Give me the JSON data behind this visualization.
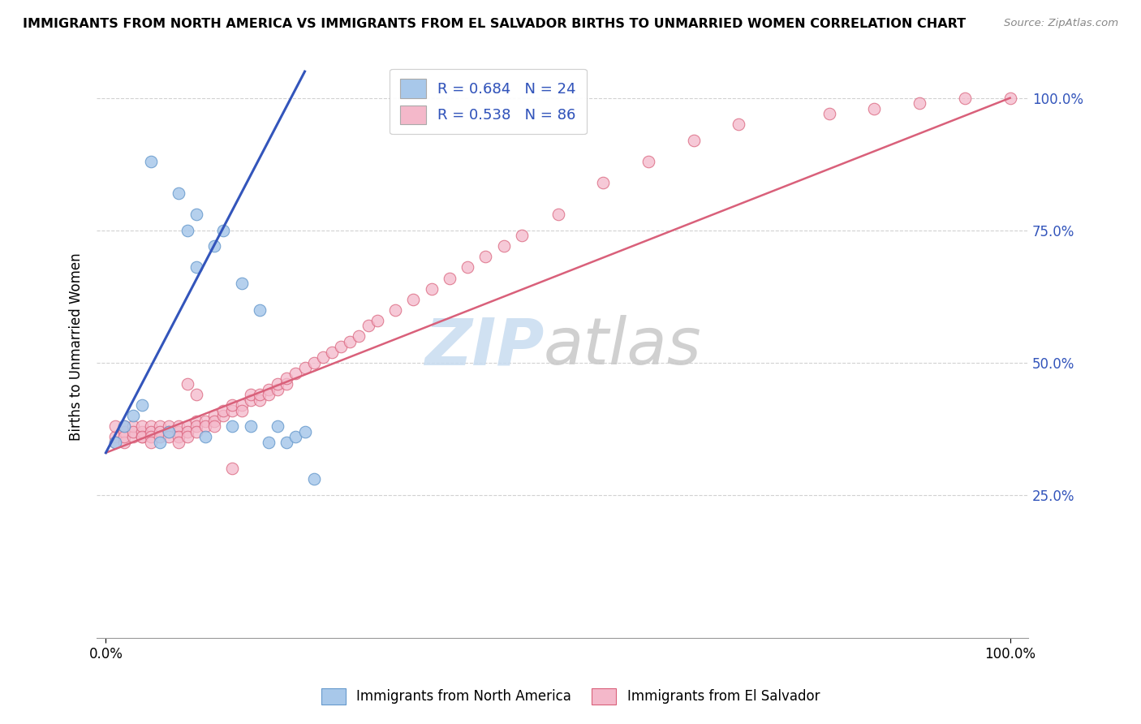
{
  "title": "IMMIGRANTS FROM NORTH AMERICA VS IMMIGRANTS FROM EL SALVADOR BIRTHS TO UNMARRIED WOMEN CORRELATION CHART",
  "source": "Source: ZipAtlas.com",
  "ylabel": "Births to Unmarried Women",
  "legend1_label": "R = 0.684   N = 24",
  "legend2_label": "R = 0.538   N = 86",
  "legend1_color": "#a8c8ea",
  "legend2_color": "#f4b8ca",
  "watermark_zip": "ZIP",
  "watermark_atlas": "atlas",
  "blue_line_color": "#3355bb",
  "pink_line_color": "#d9607a",
  "blue_dot_color": "#a8c8ea",
  "pink_dot_color": "#f4b8ca",
  "blue_dot_edge": "#6699cc",
  "pink_dot_edge": "#d9607a",
  "north_america_x": [
    0.01,
    0.02,
    0.03,
    0.04,
    0.05,
    0.06,
    0.07,
    0.08,
    0.09,
    0.1,
    0.1,
    0.11,
    0.12,
    0.13,
    0.14,
    0.15,
    0.16,
    0.17,
    0.18,
    0.19,
    0.2,
    0.21,
    0.22,
    0.23
  ],
  "north_america_y": [
    0.35,
    0.38,
    0.4,
    0.42,
    0.88,
    0.35,
    0.37,
    0.82,
    0.75,
    0.68,
    0.78,
    0.36,
    0.72,
    0.75,
    0.38,
    0.65,
    0.38,
    0.6,
    0.35,
    0.38,
    0.35,
    0.36,
    0.37,
    0.28
  ],
  "el_salvador_x": [
    0.01,
    0.01,
    0.01,
    0.02,
    0.02,
    0.02,
    0.02,
    0.03,
    0.03,
    0.03,
    0.04,
    0.04,
    0.04,
    0.04,
    0.05,
    0.05,
    0.05,
    0.05,
    0.06,
    0.06,
    0.06,
    0.07,
    0.07,
    0.07,
    0.08,
    0.08,
    0.08,
    0.08,
    0.09,
    0.09,
    0.09,
    0.1,
    0.1,
    0.1,
    0.11,
    0.11,
    0.12,
    0.12,
    0.13,
    0.13,
    0.14,
    0.14,
    0.15,
    0.15,
    0.16,
    0.16,
    0.17,
    0.17,
    0.18,
    0.18,
    0.19,
    0.19,
    0.2,
    0.2,
    0.21,
    0.22,
    0.23,
    0.24,
    0.25,
    0.26,
    0.27,
    0.28,
    0.29,
    0.3,
    0.32,
    0.34,
    0.36,
    0.38,
    0.4,
    0.42,
    0.44,
    0.46,
    0.5,
    0.55,
    0.6,
    0.65,
    0.7,
    0.8,
    0.85,
    0.9,
    0.95,
    1.0,
    0.09,
    0.1,
    0.12,
    0.14
  ],
  "el_salvador_y": [
    0.36,
    0.38,
    0.35,
    0.37,
    0.35,
    0.38,
    0.36,
    0.36,
    0.38,
    0.37,
    0.36,
    0.37,
    0.38,
    0.36,
    0.38,
    0.37,
    0.36,
    0.35,
    0.38,
    0.37,
    0.36,
    0.38,
    0.37,
    0.36,
    0.37,
    0.38,
    0.36,
    0.35,
    0.38,
    0.37,
    0.36,
    0.39,
    0.38,
    0.37,
    0.39,
    0.38,
    0.4,
    0.39,
    0.4,
    0.41,
    0.41,
    0.42,
    0.42,
    0.41,
    0.43,
    0.44,
    0.43,
    0.44,
    0.45,
    0.44,
    0.45,
    0.46,
    0.46,
    0.47,
    0.48,
    0.49,
    0.5,
    0.51,
    0.52,
    0.53,
    0.54,
    0.55,
    0.57,
    0.58,
    0.6,
    0.62,
    0.64,
    0.66,
    0.68,
    0.7,
    0.72,
    0.74,
    0.78,
    0.84,
    0.88,
    0.92,
    0.95,
    0.97,
    0.98,
    0.99,
    1.0,
    1.0,
    0.46,
    0.44,
    0.38,
    0.3
  ],
  "blue_line_x0": 0.0,
  "blue_line_y0": 0.33,
  "blue_line_x1": 0.22,
  "blue_line_y1": 1.05,
  "pink_line_x0": 0.0,
  "pink_line_y0": 0.33,
  "pink_line_x1": 1.0,
  "pink_line_y1": 1.0,
  "xmin": 0.0,
  "xmax": 1.0,
  "ymin": 0.0,
  "ymax": 1.08,
  "ytick_vals": [
    0.25,
    0.5,
    0.75,
    1.0
  ],
  "ytick_labels": [
    "25.0%",
    "50.0%",
    "75.0%",
    "100.0%"
  ],
  "xtick_vals": [
    0.0,
    1.0
  ],
  "xtick_labels": [
    "0.0%",
    "100.0%"
  ],
  "tick_color": "#3355bb",
  "grid_color": "#cccccc",
  "background_color": "#ffffff"
}
